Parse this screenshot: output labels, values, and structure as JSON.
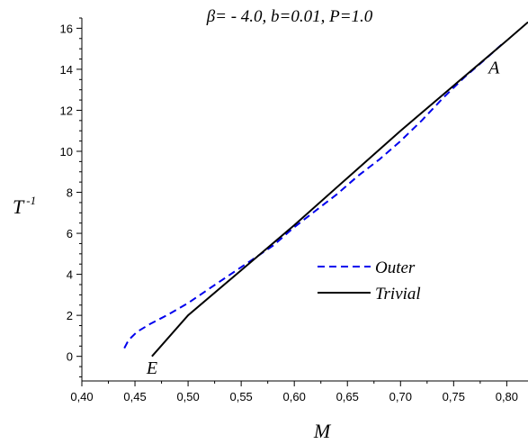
{
  "chart_data": {
    "type": "line",
    "title": "β= - 4.0,  b=0.01,   P=1.0",
    "xlabel": "M",
    "ylabel_main": "T",
    "ylabel_sup": "-1",
    "xlim": [
      0.4,
      0.82
    ],
    "ylim": [
      -1.2,
      16.5
    ],
    "x_ticks": [
      "0,40",
      "0,45",
      "0,50",
      "0,55",
      "0,60",
      "0,65",
      "0,70",
      "0,75",
      "0,80"
    ],
    "x_tick_values": [
      0.4,
      0.45,
      0.5,
      0.55,
      0.6,
      0.65,
      0.7,
      0.75,
      0.8
    ],
    "y_ticks": [
      "0",
      "2",
      "4",
      "6",
      "8",
      "10",
      "12",
      "14",
      "16"
    ],
    "y_tick_values": [
      0,
      2,
      4,
      6,
      8,
      10,
      12,
      14,
      16
    ],
    "grid": false,
    "legend_position": "center-right",
    "series": [
      {
        "name": "Outer",
        "style": "dashed",
        "color": "#0000ee",
        "x": [
          0.44,
          0.444,
          0.452,
          0.465,
          0.48,
          0.5,
          0.52,
          0.54,
          0.56,
          0.58,
          0.6,
          0.62,
          0.64,
          0.66,
          0.68,
          0.7,
          0.72,
          0.74,
          0.76,
          0.78,
          0.795
        ],
        "y": [
          0.4,
          0.8,
          1.2,
          1.6,
          2.0,
          2.6,
          3.3,
          4.0,
          4.7,
          5.4,
          6.3,
          7.1,
          7.9,
          8.8,
          9.6,
          10.5,
          11.5,
          12.6,
          13.6,
          14.5,
          15.2
        ]
      },
      {
        "name": "Trivial",
        "style": "solid",
        "color": "#000000",
        "x": [
          0.466,
          0.5,
          0.55,
          0.6,
          0.65,
          0.7,
          0.75,
          0.8,
          0.82
        ],
        "y": [
          0.0,
          2.0,
          4.2,
          6.4,
          8.7,
          11.0,
          13.2,
          15.4,
          16.3
        ]
      }
    ],
    "annotations": [
      {
        "text": "A",
        "x": 0.788,
        "y": 13.8
      },
      {
        "text": "E",
        "x": 0.466,
        "y": -0.85
      }
    ]
  }
}
